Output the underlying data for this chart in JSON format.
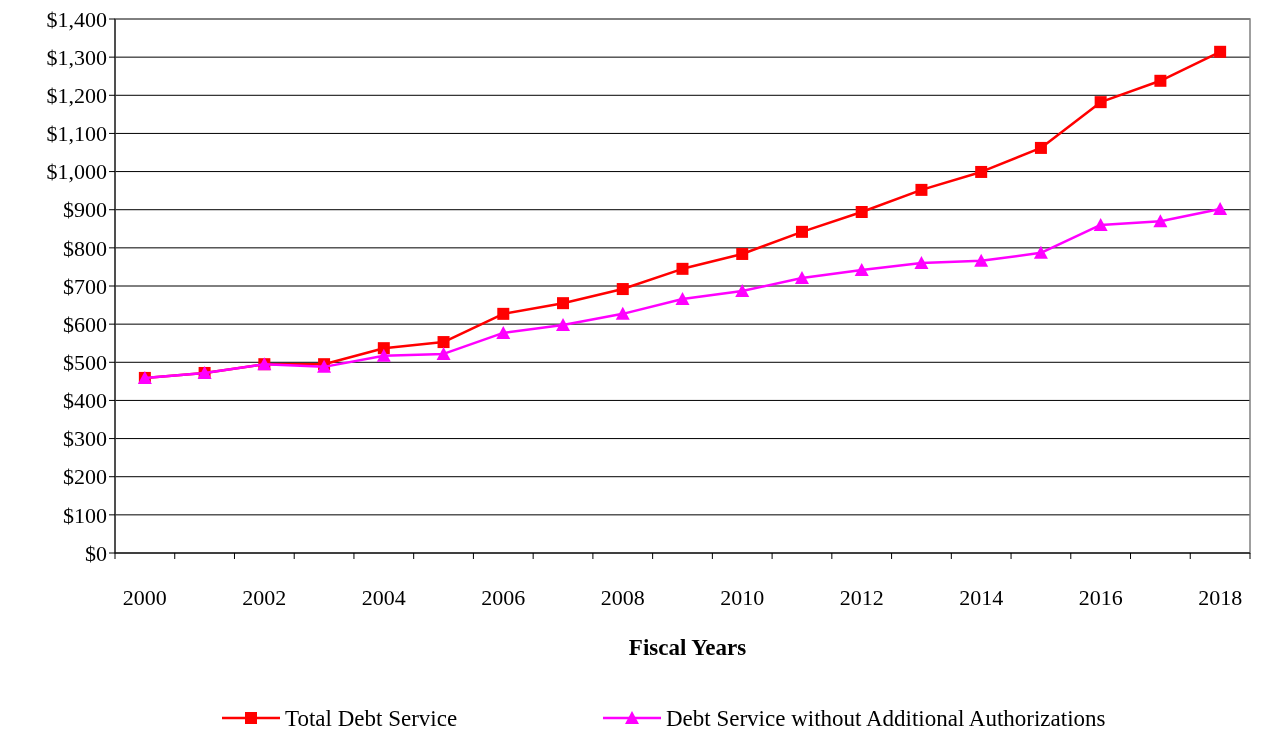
{
  "chart_data": {
    "type": "line",
    "xlabel": "Fiscal Years",
    "categories": [
      "2000",
      null,
      "2002",
      null,
      "2004",
      null,
      "2006",
      null,
      "2008",
      null,
      "2010",
      null,
      "2012",
      null,
      "2014",
      null,
      "2016",
      null,
      "2018"
    ],
    "series": [
      {
        "name": "Total Debt Service",
        "color": "#ff0000",
        "marker": "square",
        "values": [
          459,
          472,
          495,
          495,
          537,
          553,
          627,
          655,
          692,
          745,
          784,
          842,
          894,
          952,
          999,
          1062,
          1182,
          1238,
          1314
        ]
      },
      {
        "name": "Debt Service without Additional Authorizations",
        "color": "#ff00ff",
        "marker": "triangle",
        "values": [
          459,
          472,
          495,
          488,
          517,
          522,
          577,
          598,
          627,
          666,
          687,
          721,
          742,
          760,
          766,
          787,
          860,
          870,
          902
        ]
      }
    ],
    "ylim": [
      0,
      1400
    ],
    "yticks": [
      {
        "value": 0,
        "label": "$0"
      },
      {
        "value": 100,
        "label": "$100"
      },
      {
        "value": 200,
        "label": "$200"
      },
      {
        "value": 300,
        "label": "$300"
      },
      {
        "value": 400,
        "label": "$400"
      },
      {
        "value": 500,
        "label": "$500"
      },
      {
        "value": 600,
        "label": "$600"
      },
      {
        "value": 700,
        "label": "$700"
      },
      {
        "value": 800,
        "label": "$800"
      },
      {
        "value": 900,
        "label": "$900"
      },
      {
        "value": 1000,
        "label": "$1,000"
      },
      {
        "value": 1100,
        "label": "$1,100"
      },
      {
        "value": 1200,
        "label": "$1,200"
      },
      {
        "value": 1300,
        "label": "$1,300"
      },
      {
        "value": 1400,
        "label": "$1,400"
      }
    ],
    "grid": "y",
    "legend": "bottom",
    "line_style": "solid"
  }
}
